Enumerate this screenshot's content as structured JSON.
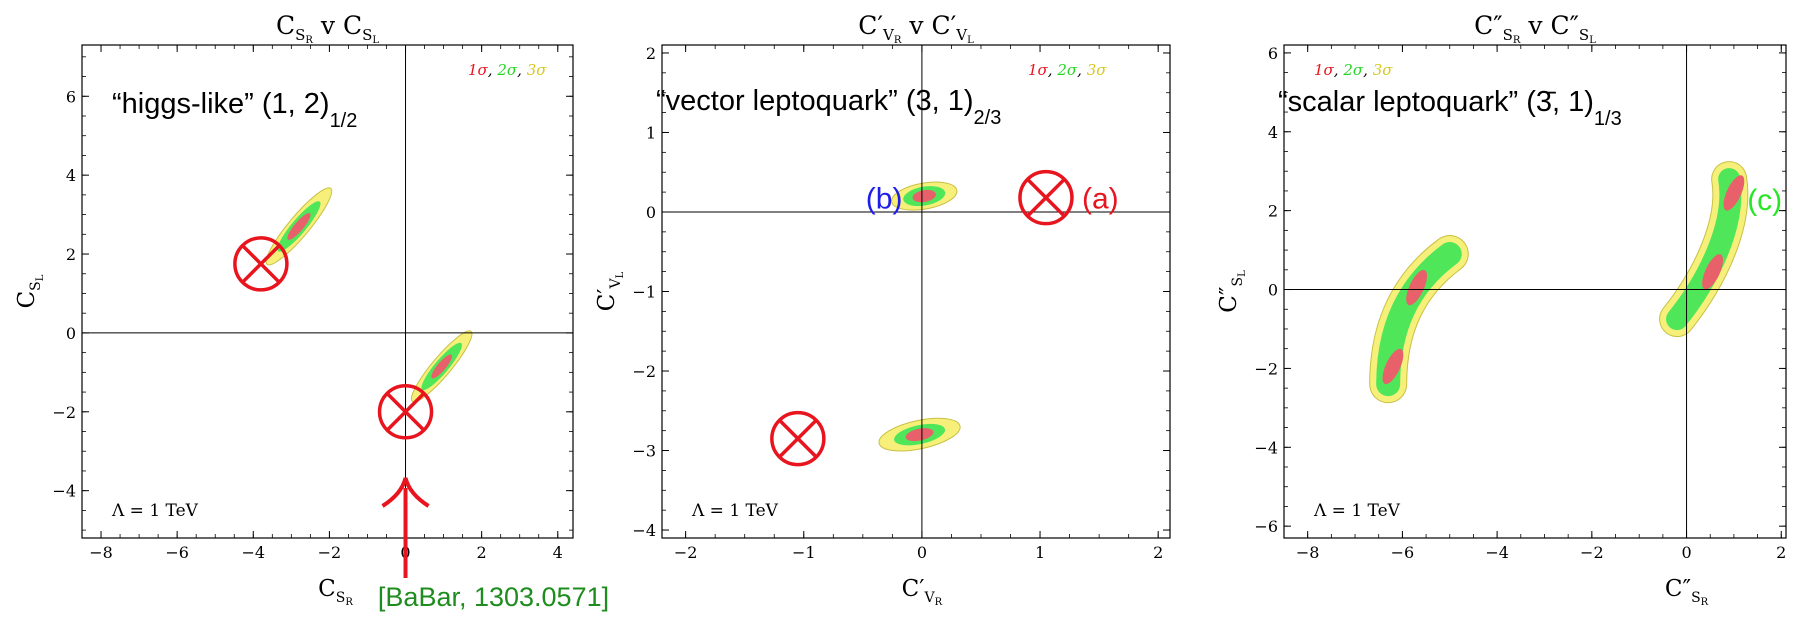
{
  "chart_data": [
    {
      "type": "contour",
      "title": "C_{S_R} v C_{S_L}",
      "title_main": "C",
      "title_sub1": "S",
      "title_sub1b": "R",
      "title_mid": " v ",
      "title_sub2": "S",
      "title_sub2b": "L",
      "xlabel": "C_{S_R}",
      "ylabel": "C_{S_L}",
      "xlim": [
        -8.5,
        4.4
      ],
      "ylim": [
        -5.2,
        7.3
      ],
      "xticks": [
        "−8",
        "−6",
        "−4",
        "−2",
        "0",
        "2",
        "4"
      ],
      "xtick_values": [
        -8,
        -6,
        -4,
        -2,
        0,
        2,
        4
      ],
      "yticks": [
        "−4",
        "−2",
        "0",
        "2",
        "4",
        "6"
      ],
      "ytick_values": [
        -4,
        -2,
        0,
        2,
        4,
        6
      ],
      "model_label": "“higgs-like” (1, 2)",
      "model_sub": "1/2",
      "legend": {
        "s1": "1σ",
        "s2": "2σ",
        "s3": "3σ"
      },
      "lambda_label": "Λ = 1 TeV",
      "regions": [
        {
          "cx": -2.8,
          "cy": 2.7,
          "angle_deg": -50,
          "s1": [
            0.45,
            0.12
          ],
          "s2": [
            0.85,
            0.19
          ],
          "s3": [
            1.3,
            0.27
          ]
        },
        {
          "cx": 0.95,
          "cy": -0.85,
          "angle_deg": -50,
          "s1": [
            0.4,
            0.11
          ],
          "s2": [
            0.8,
            0.18
          ],
          "s3": [
            1.2,
            0.25
          ]
        }
      ],
      "markers": [
        {
          "x": -3.8,
          "y": 1.75,
          "color": "#e8141e"
        },
        {
          "x": 0.0,
          "y": -2.0,
          "color": "#e8141e"
        }
      ],
      "source_label": "[BaBar, 1303.0571]"
    },
    {
      "type": "contour",
      "title": "C'_{V_R} v C'_{V_L}",
      "title_main": "C′",
      "title_sub1": "V",
      "title_sub1b": "R",
      "title_mid": " v ",
      "title_sub2": "V",
      "title_sub2b": "L",
      "xlabel": "C'_{V_R}",
      "ylabel": "C'_{V_L}",
      "xlim": [
        -2.2,
        2.1
      ],
      "ylim": [
        -4.1,
        2.1
      ],
      "xticks": [
        "−2",
        "−1",
        "0",
        "1",
        "2"
      ],
      "xtick_values": [
        -2,
        -1,
        0,
        1,
        2
      ],
      "yticks": [
        "−4",
        "−3",
        "−2",
        "−1",
        "0",
        "1",
        "2"
      ],
      "ytick_values": [
        -4,
        -3,
        -2,
        -1,
        0,
        1,
        2
      ],
      "model_label": "“vector leptoquark” (3, 1)",
      "model_sub": "2/3",
      "legend": {
        "s1": "1σ",
        "s2": "2σ",
        "s3": "3σ"
      },
      "lambda_label": "Λ = 1 TeV",
      "regions": [
        {
          "cx": 0.02,
          "cy": 0.2,
          "angle_deg": -10,
          "s1": [
            0.1,
            0.05
          ],
          "s2": [
            0.18,
            0.08
          ],
          "s3": [
            0.28,
            0.11
          ]
        },
        {
          "cx": -0.02,
          "cy": -2.8,
          "angle_deg": -12,
          "s1": [
            0.12,
            0.05
          ],
          "s2": [
            0.22,
            0.08
          ],
          "s3": [
            0.35,
            0.12
          ]
        }
      ],
      "markers": [
        {
          "x": 1.05,
          "y": 0.18,
          "color": "#e8141e",
          "label": "(a)",
          "label_color": "#e8141e"
        },
        {
          "x": -1.05,
          "y": -2.85,
          "color": "#e8141e"
        }
      ],
      "point_labels": [
        {
          "x": -0.32,
          "y": 0.18,
          "text": "(b)",
          "color": "#1e1ee8"
        }
      ]
    },
    {
      "type": "contour",
      "title": "C''_{S_R} v C''_{S_L}",
      "title_main": "C″",
      "title_sub1": "S",
      "title_sub1b": "R",
      "title_mid": " v ",
      "title_sub2": "S",
      "title_sub2b": "L",
      "xlabel": "C''_{S_R}",
      "ylabel": "C''_{S_L}",
      "xlim": [
        -8.5,
        2.1
      ],
      "ylim": [
        -6.3,
        6.2
      ],
      "xticks": [
        "−8",
        "−6",
        "−4",
        "−2",
        "0",
        "2"
      ],
      "xtick_values": [
        -8,
        -6,
        -4,
        -2,
        0,
        2
      ],
      "yticks": [
        "−6",
        "−4",
        "−2",
        "0",
        "2",
        "4",
        "6"
      ],
      "ytick_values": [
        -6,
        -4,
        -2,
        0,
        2,
        4,
        6
      ],
      "model_label": "“scalar leptoquark” (3̄, 1)",
      "model_sub": "1/3",
      "legend": {
        "s1": "1σ",
        "s2": "2σ",
        "s3": "3σ"
      },
      "lambda_label": "Λ = 1 TeV",
      "bands": [
        {
          "path": [
            [
              -6.3,
              -2.4
            ],
            [
              -6.3,
              -1.0
            ],
            [
              -5.9,
              0.1
            ],
            [
              -5.0,
              0.9
            ]
          ],
          "w3": 36,
          "w2": 24,
          "w1": [
            [
              -6.2,
              -1.95,
              12
            ],
            [
              -5.7,
              0.05,
              12
            ]
          ]
        },
        {
          "path": [
            [
              -0.2,
              -0.75
            ],
            [
              0.5,
              0.3
            ],
            [
              1.05,
              1.7
            ],
            [
              0.9,
              2.8
            ]
          ],
          "w3": 34,
          "w2": 22,
          "w1": [
            [
              0.55,
              0.45,
              12
            ],
            [
              1.0,
              2.45,
              12
            ]
          ]
        }
      ],
      "point_labels": [
        {
          "x": 1.65,
          "y": 2.3,
          "text": "(c)",
          "color": "#26e626"
        }
      ]
    }
  ],
  "colors": {
    "s1": "#e8606a",
    "s2": "#4fe65a",
    "s3": "#f6f07a",
    "s3_edge": "#c8c044"
  }
}
